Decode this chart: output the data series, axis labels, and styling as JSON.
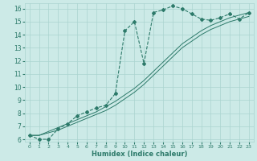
{
  "xlabel": "Humidex (Indice chaleur)",
  "bg_color": "#cceae7",
  "grid_color": "#aad4d0",
  "line_color": "#2d7a6a",
  "xlim": [
    -0.5,
    23.5
  ],
  "ylim": [
    5.8,
    16.4
  ],
  "x_ticks": [
    0,
    1,
    2,
    3,
    4,
    5,
    6,
    7,
    8,
    9,
    10,
    11,
    12,
    13,
    14,
    15,
    16,
    17,
    18,
    19,
    20,
    21,
    22,
    23
  ],
  "y_ticks": [
    6,
    7,
    8,
    9,
    10,
    11,
    12,
    13,
    14,
    15,
    16
  ],
  "humidex_x": [
    0,
    1,
    2,
    3,
    4,
    5,
    6,
    7,
    8,
    9,
    10,
    11,
    12,
    13,
    14,
    15,
    16,
    17,
    18,
    19,
    20,
    21,
    22,
    23
  ],
  "humidex_y": [
    6.3,
    6.0,
    6.0,
    6.8,
    7.2,
    7.8,
    8.1,
    8.4,
    8.6,
    9.5,
    14.3,
    15.0,
    11.8,
    15.7,
    15.9,
    16.2,
    16.0,
    15.6,
    15.2,
    15.1,
    15.3,
    15.6,
    15.2,
    15.7
  ],
  "trend1_x": [
    0,
    1,
    2,
    3,
    4,
    5,
    6,
    7,
    8,
    9,
    10,
    11,
    12,
    13,
    14,
    15,
    16,
    17,
    18,
    19,
    20,
    21,
    22,
    23
  ],
  "trend1_y": [
    6.3,
    6.3,
    6.6,
    6.9,
    7.2,
    7.5,
    7.8,
    8.1,
    8.5,
    8.9,
    9.4,
    9.9,
    10.5,
    11.2,
    11.9,
    12.6,
    13.3,
    13.8,
    14.3,
    14.7,
    15.0,
    15.3,
    15.5,
    15.7
  ],
  "trend2_x": [
    0,
    1,
    2,
    3,
    4,
    5,
    6,
    7,
    8,
    9,
    10,
    11,
    12,
    13,
    14,
    15,
    16,
    17,
    18,
    19,
    20,
    21,
    22,
    23
  ],
  "trend2_y": [
    6.3,
    6.3,
    6.5,
    6.7,
    7.0,
    7.3,
    7.6,
    7.9,
    8.2,
    8.6,
    9.1,
    9.6,
    10.2,
    10.9,
    11.6,
    12.3,
    13.0,
    13.5,
    14.0,
    14.4,
    14.7,
    15.0,
    15.2,
    15.4
  ]
}
